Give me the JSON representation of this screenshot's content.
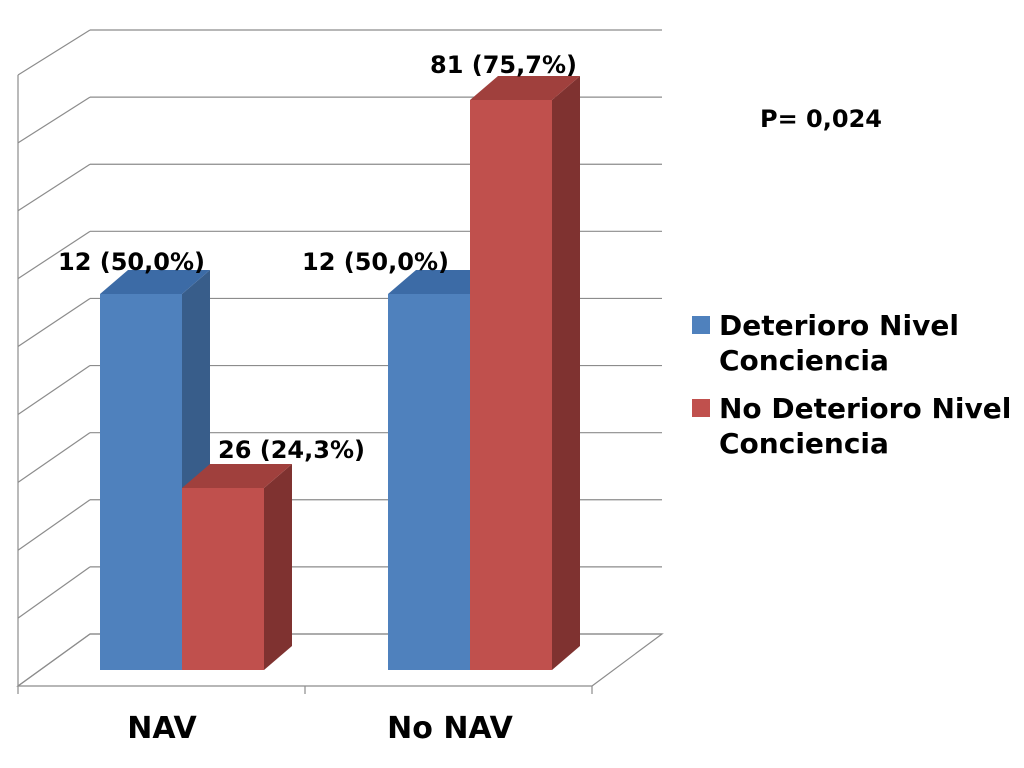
{
  "chart_data": {
    "type": "bar",
    "categories": [
      "NAV",
      "No NAV"
    ],
    "series": [
      {
        "name": "Deterioro Nivel Conciencia",
        "values": [
          12,
          12
        ],
        "labels": [
          "12 (50,0%)",
          "12 (50,0%)"
        ],
        "percent": [
          50.0,
          50.0
        ],
        "color": "#4f81bd",
        "side_color": "#385d8a",
        "top_color": "#3c6ba6"
      },
      {
        "name": "No Deterioro Nivel Conciencia",
        "values": [
          26,
          81
        ],
        "labels": [
          "26 (24,3%)",
          "81 (75,7%)"
        ],
        "percent": [
          24.3,
          75.7
        ],
        "color": "#c0504d",
        "side_color": "#7f3230",
        "top_color": "#a0403d"
      }
    ],
    "annotation": "P= 0,024",
    "legend_lines": [
      [
        "Deterioro Nivel",
        "Conciencia"
      ],
      [
        "No Deterioro Nivel",
        "Conciencia"
      ]
    ],
    "ylim": [
      0,
      90
    ],
    "grid": true,
    "legend_position": "right",
    "bar_style": "3d-clustered-column"
  }
}
